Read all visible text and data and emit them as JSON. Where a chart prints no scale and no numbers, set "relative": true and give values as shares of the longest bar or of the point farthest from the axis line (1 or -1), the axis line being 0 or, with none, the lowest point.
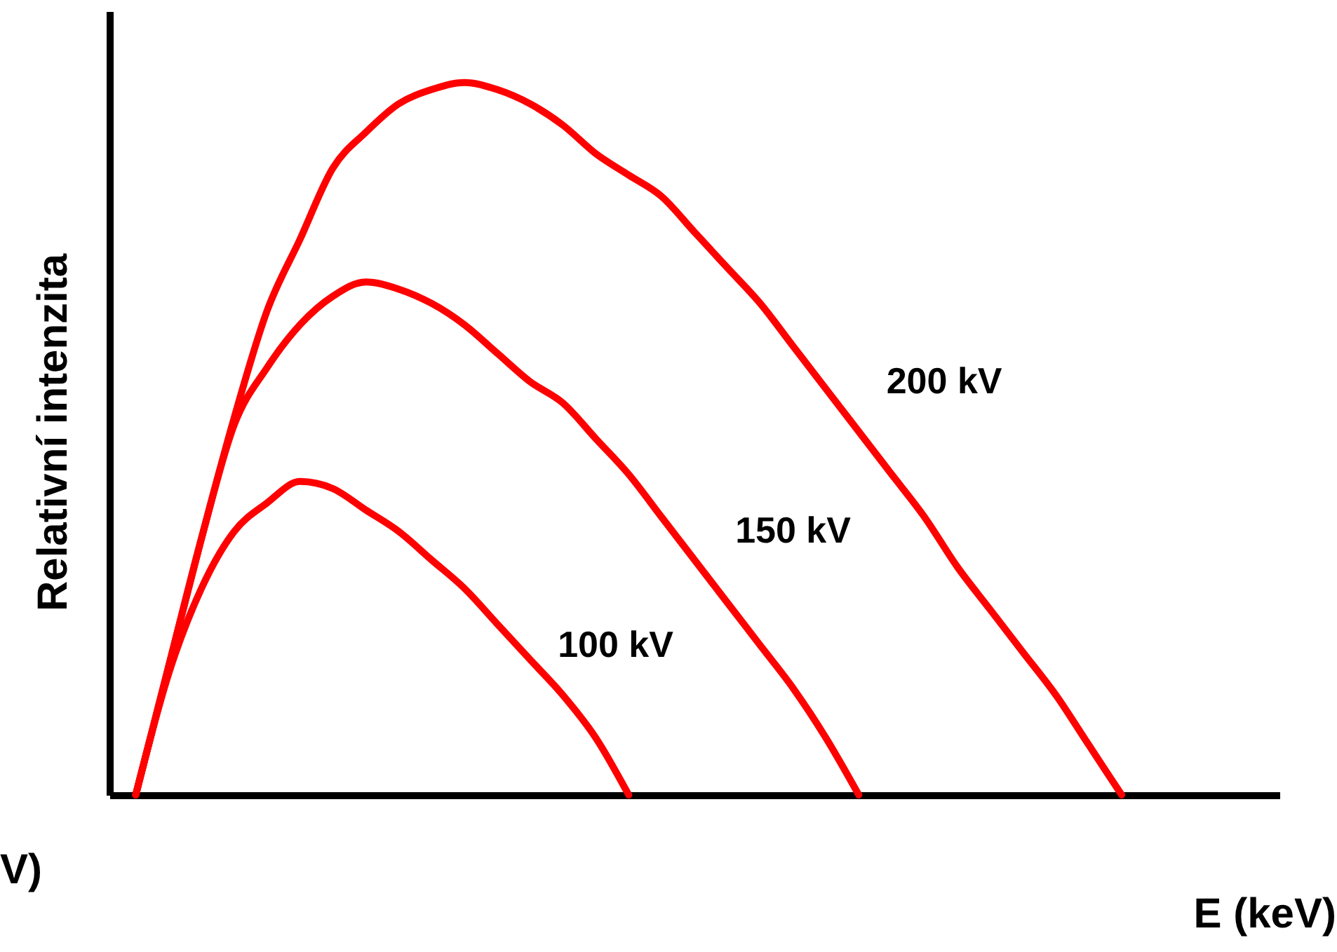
{
  "chart_data": {
    "type": "line",
    "relative": true,
    "xlabel": "E (keV)",
    "ylabel": "Relativní intenzita",
    "annotations": [
      "V)"
    ],
    "categories": [
      null,
      null,
      null,
      null,
      null,
      null,
      null,
      null,
      null,
      null,
      null,
      null,
      null,
      null,
      null,
      null,
      null,
      null,
      null,
      null,
      null,
      null,
      null,
      null,
      null,
      null,
      null,
      null,
      null,
      null,
      null,
      null,
      null,
      null,
      null
    ],
    "series": [
      {
        "name": "100 kV",
        "color": "#ff0000",
        "values": [
          0,
          0.17,
          0.29,
          0.37,
          0.41,
          0.44,
          0.43,
          0.4,
          0.37,
          0.33,
          0.29,
          0.24,
          0.19,
          0.14,
          0.08,
          0,
          null,
          null,
          null,
          null,
          null,
          null,
          null,
          null,
          null,
          null,
          null,
          null,
          null,
          null,
          null,
          null,
          null,
          null,
          null
        ]
      },
      {
        "name": "150 kV",
        "color": "#ff0000",
        "values": [
          0,
          0.18,
          0.36,
          0.52,
          0.6,
          0.66,
          0.7,
          0.72,
          0.71,
          0.69,
          0.66,
          0.62,
          0.58,
          0.55,
          0.5,
          0.45,
          0.39,
          0.33,
          0.27,
          0.21,
          0.15,
          0.08,
          0,
          null,
          null,
          null,
          null,
          null,
          null,
          null,
          null,
          null,
          null,
          null,
          null
        ]
      },
      {
        "name": "200 kV",
        "color": "#ff0000",
        "values": [
          0,
          0.18,
          0.36,
          0.53,
          0.68,
          0.78,
          0.88,
          0.93,
          0.97,
          0.99,
          1,
          0.99,
          0.97,
          0.94,
          0.9,
          0.87,
          0.84,
          0.79,
          0.74,
          0.69,
          0.63,
          0.57,
          0.51,
          0.45,
          0.39,
          0.32,
          0.26,
          0.2,
          0.14,
          0.07,
          0,
          null,
          null,
          null,
          null
        ]
      }
    ],
    "line_style": "solid",
    "marker": "none"
  }
}
